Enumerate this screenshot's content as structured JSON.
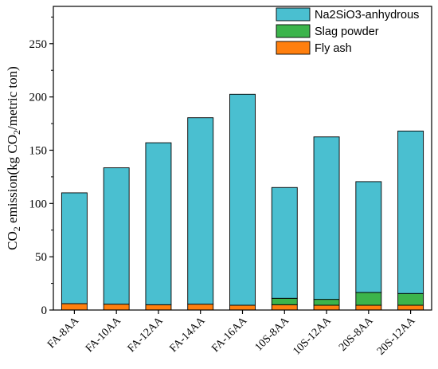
{
  "chart_data": {
    "type": "bar",
    "stacked": true,
    "categories": [
      "FA-8AA",
      "FA-10AA",
      "FA-12AA",
      "FA-14AA",
      "FA-16AA",
      "10S-8AA",
      "10S-12AA",
      "20S-8AA",
      "20S-12AA"
    ],
    "series": [
      {
        "name": "Fly ash",
        "color": "#ff7f0e",
        "values": [
          6,
          5.5,
          5,
          5.5,
          4.5,
          5,
          4.5,
          4.5,
          4.5
        ]
      },
      {
        "name": "Slag powder",
        "color": "#3cb44b",
        "values": [
          0,
          0,
          0,
          0,
          0,
          6,
          5.5,
          12,
          11
        ]
      },
      {
        "name": "Na2SiO3-anhydrous",
        "color": "#4abfd0",
        "values": [
          104,
          128,
          152,
          175,
          198,
          104,
          152.5,
          104,
          152.5
        ]
      }
    ],
    "legend_order": [
      "Na2SiO3-anhydrous",
      "Slag powder",
      "Fly ash"
    ],
    "legend_position": "top-right",
    "ylim": [
      0,
      285
    ],
    "yticks": [
      0,
      50,
      100,
      150,
      200,
      250
    ],
    "ylabel": {
      "prefix": "CO",
      "sub1": "2",
      "middle": " emission(kg CO",
      "sub2": "2",
      "suffix": "/metric ton)"
    },
    "grid": false
  }
}
